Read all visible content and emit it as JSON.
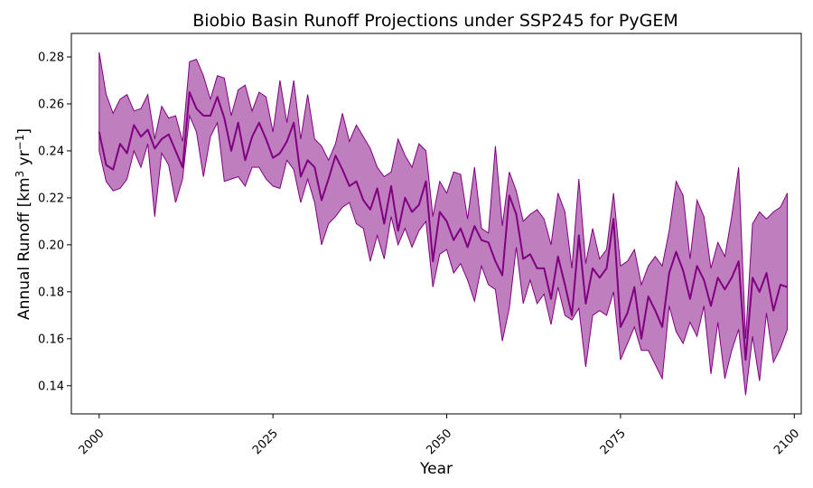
{
  "chart_data": {
    "type": "line",
    "title": "Biobio Basin Runoff Projections under SSP245 for PyGEM",
    "xlabel": "Year",
    "ylabel_main": "Annual Runoff [km",
    "ylabel_sup1": "3",
    "ylabel_mid": " yr",
    "ylabel_sup2": "−1",
    "ylabel_end": "]",
    "xlim": [
      1996,
      2101
    ],
    "ylim": [
      0.128,
      0.29
    ],
    "x_ticks": [
      2000,
      2025,
      2050,
      2075,
      2100
    ],
    "x_tick_labels": [
      "2000",
      "2025",
      "2050",
      "2075",
      "2100"
    ],
    "y_ticks": [
      0.14,
      0.16,
      0.18,
      0.2,
      0.22,
      0.24,
      0.26,
      0.28
    ],
    "y_tick_labels": [
      "0.14",
      "0.16",
      "0.18",
      "0.20",
      "0.22",
      "0.24",
      "0.26",
      "0.28"
    ],
    "colors": {
      "line": "#800080",
      "band": "#800080",
      "band_opacity": 0.5
    },
    "x": [
      2000,
      2001,
      2002,
      2003,
      2004,
      2005,
      2006,
      2007,
      2008,
      2009,
      2010,
      2011,
      2012,
      2013,
      2014,
      2015,
      2016,
      2017,
      2018,
      2019,
      2020,
      2021,
      2022,
      2023,
      2024,
      2025,
      2026,
      2027,
      2028,
      2029,
      2030,
      2031,
      2032,
      2033,
      2034,
      2035,
      2036,
      2037,
      2038,
      2039,
      2040,
      2041,
      2042,
      2043,
      2044,
      2045,
      2046,
      2047,
      2048,
      2049,
      2050,
      2051,
      2052,
      2053,
      2054,
      2055,
      2056,
      2057,
      2058,
      2059,
      2060,
      2061,
      2062,
      2063,
      2064,
      2065,
      2066,
      2067,
      2068,
      2069,
      2070,
      2071,
      2072,
      2073,
      2074,
      2075,
      2076,
      2077,
      2078,
      2079,
      2080,
      2081,
      2082,
      2083,
      2084,
      2085,
      2086,
      2087,
      2088,
      2089,
      2090,
      2091,
      2092,
      2093,
      2094,
      2095,
      2096,
      2097,
      2098,
      2099
    ],
    "series": [
      {
        "type": "mean",
        "values": [
          0.248,
          0.234,
          0.232,
          0.243,
          0.239,
          0.251,
          0.246,
          0.249,
          0.241,
          0.245,
          0.247,
          0.24,
          0.233,
          0.265,
          0.258,
          0.255,
          0.255,
          0.263,
          0.254,
          0.24,
          0.252,
          0.236,
          0.246,
          0.252,
          0.245,
          0.237,
          0.239,
          0.244,
          0.252,
          0.229,
          0.236,
          0.233,
          0.219,
          0.228,
          0.238,
          0.232,
          0.225,
          0.227,
          0.219,
          0.215,
          0.224,
          0.209,
          0.225,
          0.206,
          0.22,
          0.214,
          0.217,
          0.227,
          0.193,
          0.214,
          0.21,
          0.202,
          0.207,
          0.199,
          0.208,
          0.202,
          0.201,
          0.193,
          0.187,
          0.221,
          0.213,
          0.194,
          0.196,
          0.19,
          0.19,
          0.177,
          0.195,
          0.183,
          0.17,
          0.204,
          0.175,
          0.19,
          0.186,
          0.19,
          0.211,
          0.165,
          0.171,
          0.182,
          0.16,
          0.178,
          0.172,
          0.165,
          0.188,
          0.197,
          0.189,
          0.177,
          0.191,
          0.185,
          0.174,
          0.186,
          0.181,
          0.186,
          0.193,
          0.151,
          0.186,
          0.18,
          0.188,
          0.172,
          0.183,
          0.182
        ]
      },
      {
        "type": "upper",
        "values": [
          0.282,
          0.264,
          0.256,
          0.262,
          0.264,
          0.257,
          0.258,
          0.264,
          0.245,
          0.259,
          0.254,
          0.255,
          0.244,
          0.278,
          0.279,
          0.272,
          0.262,
          0.272,
          0.271,
          0.255,
          0.266,
          0.268,
          0.257,
          0.265,
          0.263,
          0.248,
          0.27,
          0.252,
          0.27,
          0.245,
          0.264,
          0.245,
          0.242,
          0.236,
          0.243,
          0.256,
          0.244,
          0.251,
          0.246,
          0.241,
          0.233,
          0.229,
          0.231,
          0.245,
          0.238,
          0.233,
          0.243,
          0.24,
          0.212,
          0.227,
          0.222,
          0.231,
          0.23,
          0.211,
          0.233,
          0.207,
          0.205,
          0.242,
          0.208,
          0.231,
          0.223,
          0.21,
          0.213,
          0.215,
          0.211,
          0.2,
          0.222,
          0.214,
          0.19,
          0.228,
          0.192,
          0.207,
          0.194,
          0.198,
          0.222,
          0.191,
          0.193,
          0.198,
          0.183,
          0.191,
          0.195,
          0.191,
          0.206,
          0.227,
          0.221,
          0.194,
          0.219,
          0.212,
          0.19,
          0.201,
          0.195,
          0.212,
          0.233,
          0.16,
          0.209,
          0.214,
          0.211,
          0.214,
          0.216,
          0.222
        ]
      },
      {
        "type": "lower",
        "values": [
          0.24,
          0.227,
          0.223,
          0.224,
          0.228,
          0.24,
          0.233,
          0.243,
          0.212,
          0.239,
          0.234,
          0.218,
          0.228,
          0.255,
          0.248,
          0.229,
          0.246,
          0.252,
          0.227,
          0.228,
          0.229,
          0.225,
          0.233,
          0.233,
          0.228,
          0.225,
          0.224,
          0.236,
          0.232,
          0.218,
          0.228,
          0.218,
          0.2,
          0.209,
          0.212,
          0.216,
          0.218,
          0.209,
          0.207,
          0.193,
          0.204,
          0.194,
          0.212,
          0.2,
          0.207,
          0.199,
          0.206,
          0.21,
          0.182,
          0.196,
          0.198,
          0.188,
          0.192,
          0.185,
          0.176,
          0.191,
          0.183,
          0.181,
          0.159,
          0.173,
          0.199,
          0.175,
          0.185,
          0.175,
          0.179,
          0.166,
          0.182,
          0.17,
          0.168,
          0.173,
          0.148,
          0.17,
          0.172,
          0.17,
          0.18,
          0.151,
          0.158,
          0.165,
          0.155,
          0.155,
          0.149,
          0.143,
          0.174,
          0.163,
          0.158,
          0.167,
          0.161,
          0.174,
          0.145,
          0.167,
          0.143,
          0.155,
          0.164,
          0.136,
          0.161,
          0.142,
          0.171,
          0.15,
          0.156,
          0.164
        ]
      }
    ]
  }
}
